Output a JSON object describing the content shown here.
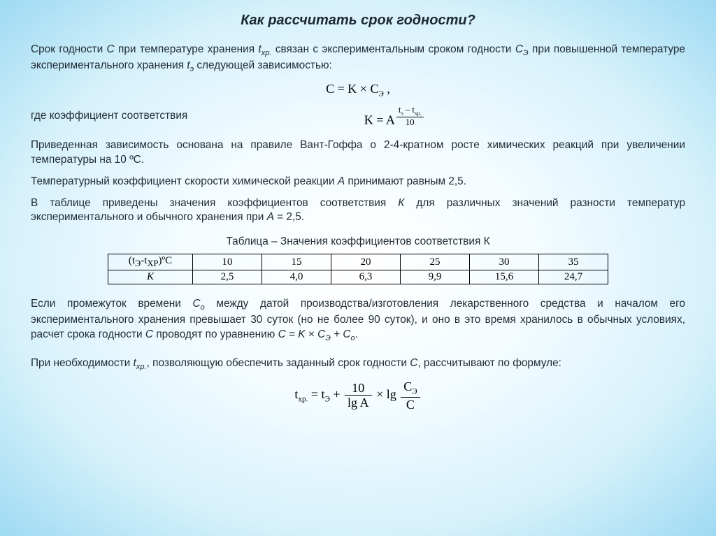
{
  "title": "Как рассчитать срок годности?",
  "para1_html": "Срок годности <span class='ital'>С</span> при температуре хранения <span class='ital'>t<span class='sub'>хр.</span></span> связан с экспериментальным сроком годности <span class='ital'>С<span class='sub'>Э</span></span> при повышенной температуре экспериментального хранения <span class='ital'>t<span class='sub'>э</span></span> следующей зависимостью:",
  "formula1_html": "C = K × C<sub>Э</sub> ,",
  "coef_label": "где коэффициент соответствия",
  "formula2_left": "K = A",
  "formula2_exp_num": "t<sub>э</sub> – t<sub>хр.</sub>",
  "formula2_exp_den": "10",
  "para2_html": "Приведенная зависимость основана на правиле Вант-Гоффа о 2-4-кратном росте химических реакций при увеличении температуры на 10 ºС.",
  "para3_html": "Температурный коэффициент скорости химической реакции <span class='ital'>А</span> принимают равным 2,5.",
  "para4_html": "В таблице приведены значения коэффициентов соответствия <span class='ital'>К</span> для различных значений разности температур экспериментального и обычного хранения при <span class='ital'>А</span> = 2,5.",
  "table_caption": "Таблица – Значения коэффициентов соответствия К",
  "table": {
    "header_cell_html": "(t<sub>Э</sub>-t<sub>ХР</sub>)ºС",
    "k_label_html": "<span class='ital'>K</span>",
    "columns": [
      "10",
      "15",
      "20",
      "25",
      "30",
      "35"
    ],
    "values": [
      "2,5",
      "4,0",
      "6,3",
      "9,9",
      "15,6",
      "24,7"
    ],
    "border_color": "#000000",
    "font_family": "Times New Roman"
  },
  "para5_html": "Если промежуток времени <span class='ital'>С<span class='sub'>о</span></span> между датой производства/изготовления лекарственного средства и началом его экспериментального хранения превышает 30 суток (но не более 90 суток), и оно в это время хранилось в обычных условиях, расчет срока годности <span class='ital'>С</span> проводят по уравнению <span class='ital'>С = K × С<span class='sub'>Э</span> + С<span class='sub'>о</span></span>.",
  "para6_html": "При необходимости <span class='ital'>t<span class='sub'>хр.</span></span>, позволяющую обеспечить заданный срок годности <span class='ital'>С</span>, рассчитывают по формуле:",
  "formula3": {
    "lhs": "t<sub>хр.</sub> = t<sub>Э</sub> + ",
    "frac1_num": "10",
    "frac1_den": "lg A",
    "mid": " × lg ",
    "frac2_num": "C<sub>Э</sub>",
    "frac2_den": "C"
  },
  "colors": {
    "text": "#1f2a33",
    "formula_text": "#000000",
    "bg_center": "#ffffff",
    "bg_edge": "#9edaf2"
  },
  "fontsizes": {
    "title": 20,
    "body": 15.4,
    "formula": 18
  }
}
